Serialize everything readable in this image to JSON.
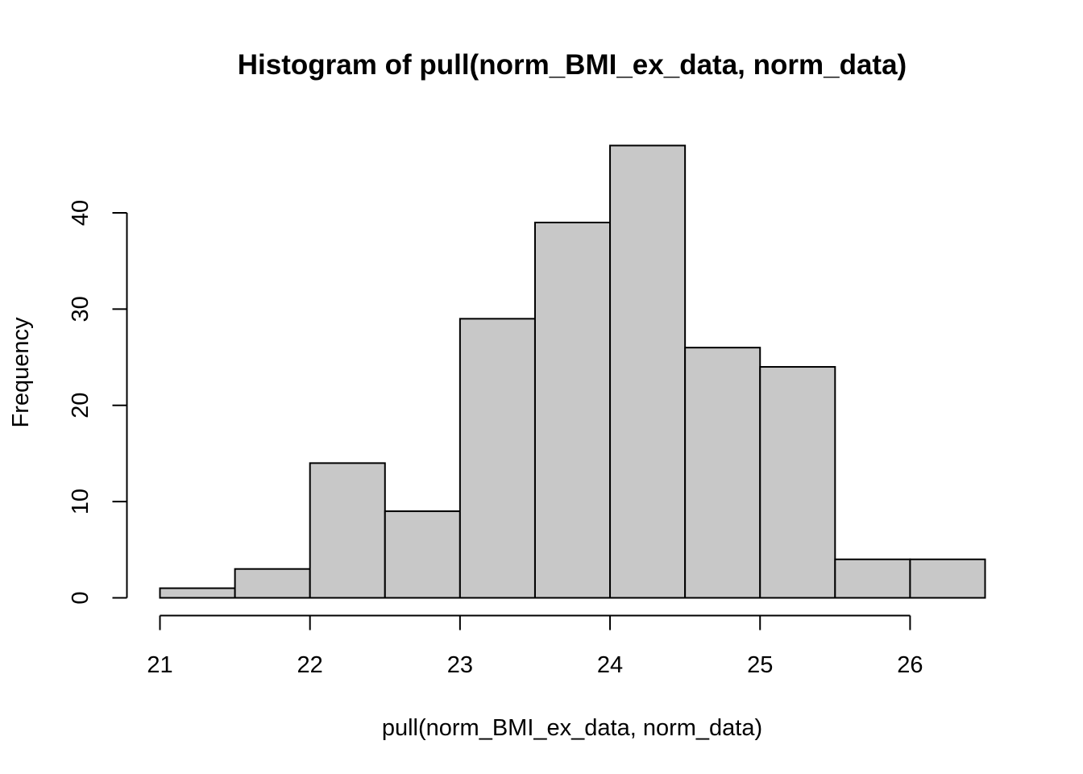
{
  "chart_data": {
    "type": "bar",
    "subtype": "histogram",
    "title": "Histogram of pull(norm_BMI_ex_data, norm_data)",
    "xlabel": "pull(norm_BMI_ex_data, norm_data)",
    "ylabel": "Frequency",
    "bins": [
      {
        "start": 21.0,
        "end": 21.5,
        "count": 1
      },
      {
        "start": 21.5,
        "end": 22.0,
        "count": 3
      },
      {
        "start": 22.0,
        "end": 22.5,
        "count": 14
      },
      {
        "start": 22.5,
        "end": 23.0,
        "count": 9
      },
      {
        "start": 23.0,
        "end": 23.5,
        "count": 29
      },
      {
        "start": 23.5,
        "end": 24.0,
        "count": 39
      },
      {
        "start": 24.0,
        "end": 24.5,
        "count": 47
      },
      {
        "start": 24.5,
        "end": 25.0,
        "count": 26
      },
      {
        "start": 25.0,
        "end": 25.5,
        "count": 24
      },
      {
        "start": 25.5,
        "end": 26.0,
        "count": 4
      },
      {
        "start": 26.0,
        "end": 26.5,
        "count": 4
      }
    ],
    "xlim": [
      21,
      26.5
    ],
    "ylim": [
      0,
      47
    ],
    "xticks": [
      21,
      22,
      23,
      24,
      25,
      26
    ],
    "yticks": [
      0,
      10,
      20,
      30,
      40
    ],
    "bar_fill": "#c8c8c8",
    "bar_stroke": "#000000",
    "grid": false
  }
}
